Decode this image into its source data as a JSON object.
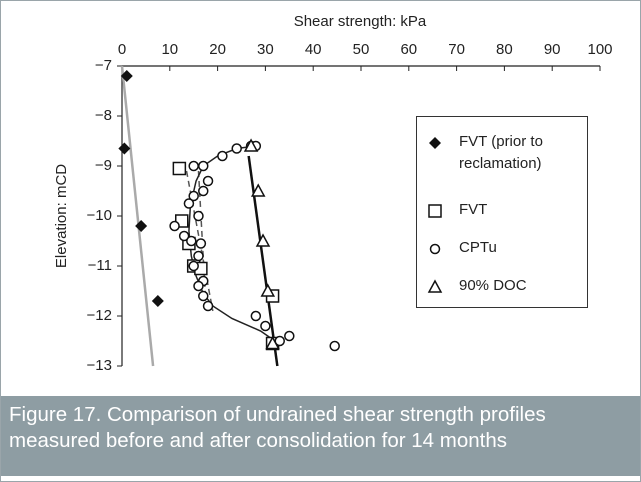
{
  "chart_data": {
    "type": "scatter",
    "x_label": "Shear strength: kPa",
    "y_label": "Elevation: mCD",
    "xlim": [
      0,
      100
    ],
    "xticks": [
      0,
      10,
      20,
      30,
      40,
      50,
      60,
      70,
      80,
      90,
      100
    ],
    "ylim": [
      -13,
      -7
    ],
    "yticks": [
      {
        "value": -7,
        "label": "−7"
      },
      {
        "value": -8,
        "label": "−8"
      },
      {
        "value": -9,
        "label": "−9"
      },
      {
        "value": -10,
        "label": "−10"
      },
      {
        "value": -11,
        "label": "−11"
      },
      {
        "value": -12,
        "label": "−12"
      },
      {
        "value": -13,
        "label": "−13"
      }
    ],
    "x_axis_position": "top",
    "grid": false,
    "series": [
      {
        "name": "FVT (prior to reclamation)",
        "marker": "diamond",
        "color": "#111111",
        "x": [
          1,
          0.5,
          4,
          7.5
        ],
        "y": [
          -7.2,
          -8.65,
          -10.2,
          -11.7
        ]
      },
      {
        "name": "FVT",
        "marker": "square",
        "color": "#111111",
        "x": [
          12,
          12.5,
          14,
          15,
          16.5,
          31.5,
          31.5
        ],
        "y": [
          -9.05,
          -10.1,
          -10.55,
          -11.0,
          -11.05,
          -11.6,
          -12.55
        ]
      },
      {
        "name": "CPTu",
        "marker": "circle",
        "color": "#111111",
        "x": [
          15,
          17,
          18,
          17,
          15,
          14,
          16,
          11,
          13,
          14.5,
          16.5,
          16,
          15,
          17,
          16,
          17,
          18,
          21,
          24,
          27,
          28,
          28,
          30,
          33,
          35,
          44.5
        ],
        "y": [
          -9.0,
          -9.0,
          -9.3,
          -9.5,
          -9.6,
          -9.75,
          -10.0,
          -10.2,
          -10.4,
          -10.5,
          -10.55,
          -10.8,
          -11.0,
          -11.3,
          -11.4,
          -11.6,
          -11.8,
          -8.8,
          -8.65,
          -8.6,
          -8.6,
          -12.0,
          -12.2,
          -12.5,
          -12.4,
          -12.6
        ]
      },
      {
        "name": "90% DOC",
        "marker": "triangle",
        "color": "#111111",
        "x": [
          27,
          28.5,
          29.5,
          30.5,
          31.5
        ],
        "y": [
          -8.6,
          -9.5,
          -10.5,
          -11.5,
          -12.55
        ]
      }
    ],
    "lines": [
      {
        "style": "solid",
        "color": "#aaaaaa",
        "width": 2.5,
        "x": [
          0,
          6.5
        ],
        "y": [
          -7,
          -13
        ]
      },
      {
        "style": "solid",
        "color": "#111111",
        "width": 2.5,
        "x": [
          26.5,
          32.5
        ],
        "y": [
          -8.8,
          -13
        ]
      },
      {
        "style": "dashed",
        "color": "#555555",
        "width": 1.5,
        "x": [
          13.5,
          19
        ],
        "y": [
          -9.1,
          -11.9
        ]
      },
      {
        "style": "dashed",
        "color": "#555555",
        "width": 1.5,
        "x": [
          16,
          17.5
        ],
        "y": [
          -9.1,
          -11.7
        ]
      },
      {
        "style": "solid",
        "color": "#222222",
        "width": 1.5,
        "x": [
          28,
          24,
          20,
          17,
          15.5,
          14.3,
          14,
          14.5,
          15.5,
          17,
          19,
          23,
          29,
          32
        ],
        "y": [
          -8.6,
          -8.65,
          -8.8,
          -9.0,
          -9.3,
          -9.8,
          -10.3,
          -10.8,
          -11.2,
          -11.55,
          -11.8,
          -12.05,
          -12.3,
          -12.5
        ]
      }
    ]
  },
  "caption": "Figure 17. Comparison of undrained shear strength profiles measured before and after consolidation for 14 months"
}
